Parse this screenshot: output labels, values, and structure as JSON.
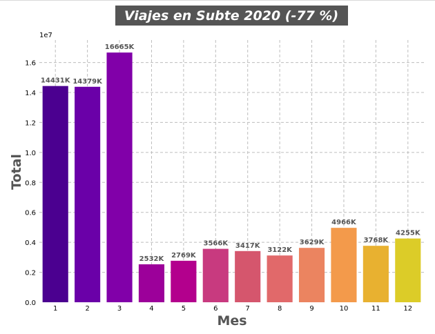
{
  "chart_data": {
    "type": "bar",
    "title": "Viajes en Subte 2020 (-77 %)",
    "xlabel": "Mes",
    "ylabel": "Total",
    "categories": [
      "1",
      "2",
      "3",
      "4",
      "5",
      "6",
      "7",
      "8",
      "9",
      "10",
      "11",
      "12"
    ],
    "values": [
      14431000,
      14379000,
      16665000,
      2532000,
      2769000,
      3566000,
      3417000,
      3122000,
      3629000,
      4966000,
      3768000,
      4255000
    ],
    "data_labels": [
      "14431K",
      "14379K",
      "16665K",
      "2532K",
      "2769K",
      "3566K",
      "3417K",
      "3122K",
      "3629K",
      "4966K",
      "3768K",
      "4255K"
    ],
    "ylim": [
      0,
      17500000
    ],
    "yticks": [
      0,
      2000000,
      4000000,
      6000000,
      8000000,
      10000000,
      12000000,
      14000000,
      16000000
    ],
    "ytick_labels": [
      "0.0",
      "0.2",
      "0.4",
      "0.6",
      "0.8",
      "1.0",
      "1.2",
      "1.4",
      "1.6"
    ],
    "y_offset_label": "1e7",
    "grid": true,
    "colors": [
      "#4b0090",
      "#6a00a8",
      "#8100a9",
      "#9c009a",
      "#b3008d",
      "#c83a7f",
      "#d5566d",
      "#e1696a",
      "#eb8460",
      "#f39a4b",
      "#e8b130",
      "#dccc28"
    ],
    "title_bg": "#555555",
    "title_color": "#ffffff",
    "label_color": "#555555"
  }
}
